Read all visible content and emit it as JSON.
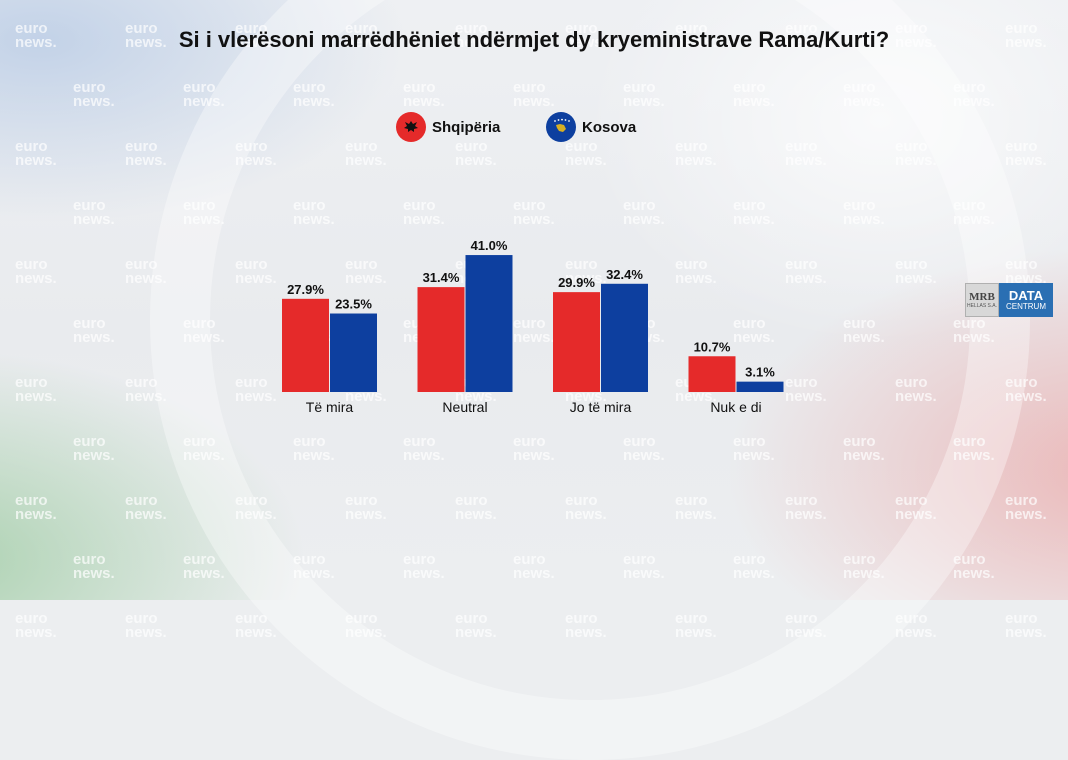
{
  "title": "Si i vlerësoni marrëdhëniet ndërmjet dy kryeministrave Rama/Kurti?",
  "legend": [
    {
      "label": "Shqipëria",
      "color": "#e52a2a",
      "icon": "albania-flag-icon"
    },
    {
      "label": "Kosova",
      "color": "#0d3f9f",
      "icon": "kosovo-flag-icon"
    }
  ],
  "watermark": {
    "line1": "euro",
    "line2": "news."
  },
  "logo": {
    "left_top": "MRB",
    "left_bottom": "HELLAS S.A.",
    "right_top": "DATA",
    "right_bottom": "CENTRUM"
  },
  "chart_data": {
    "type": "bar",
    "title": "Si i vlerësoni marrëdhëniet ndërmjet dy kryeministrave Rama/Kurti?",
    "xlabel": "",
    "ylabel": "",
    "ylim": [
      0,
      45
    ],
    "grid": false,
    "legend_position": "top-center",
    "categories": [
      "Të mira",
      "Neutral",
      "Jo të mira",
      "Nuk e di"
    ],
    "series": [
      {
        "name": "Shqipëria",
        "color": "#e52a2a",
        "values": [
          27.9,
          31.4,
          29.9,
          10.7
        ],
        "labels": [
          "27.9%",
          "31.4%",
          "29.9%",
          "10.7%"
        ]
      },
      {
        "name": "Kosova",
        "color": "#0d3f9f",
        "values": [
          23.5,
          41.0,
          32.4,
          3.1
        ],
        "labels": [
          "23.5%",
          "41.0%",
          "32.4%",
          "3.1%"
        ]
      }
    ]
  }
}
